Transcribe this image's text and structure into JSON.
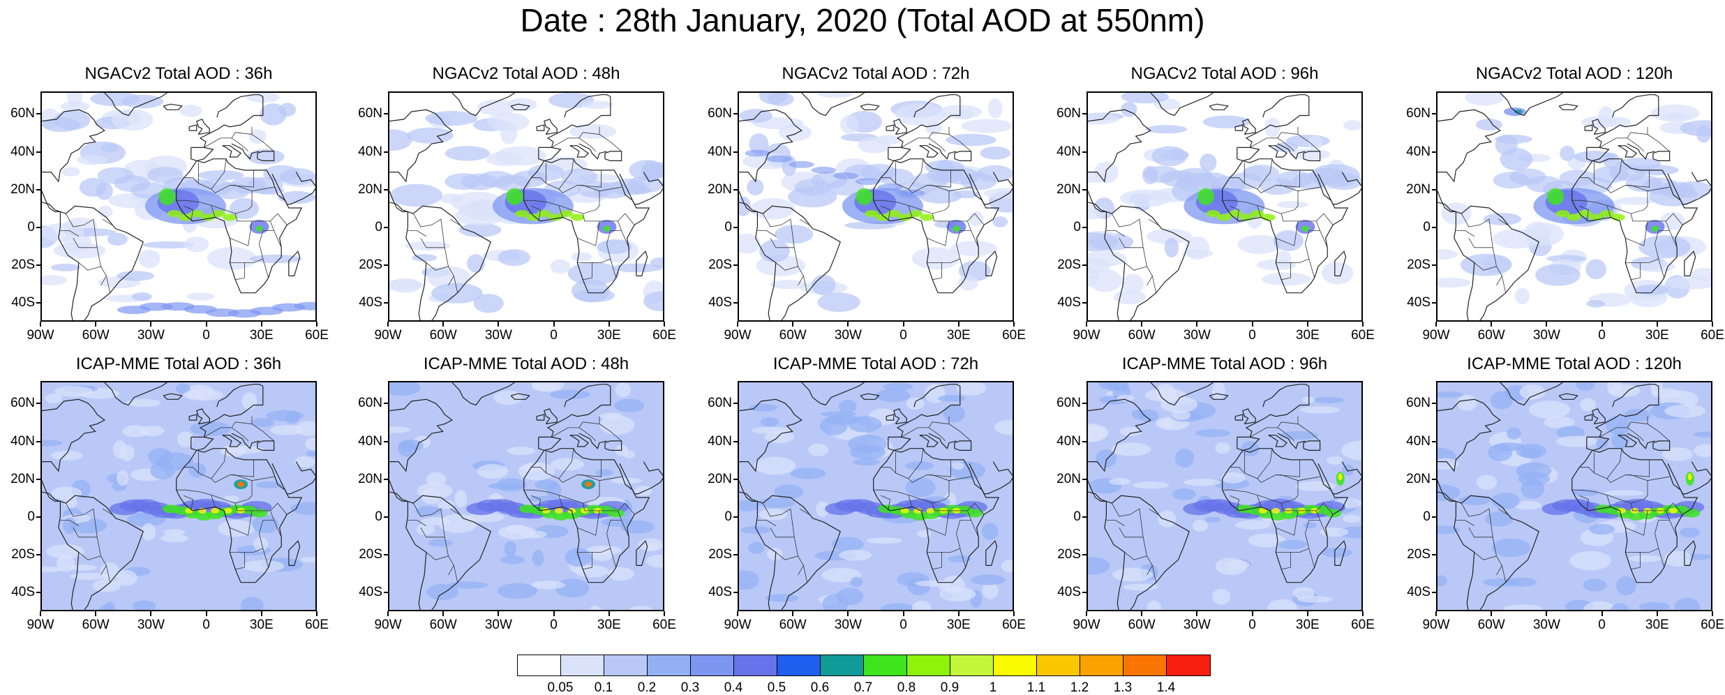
{
  "figure": {
    "title": "Date : 28th January, 2020 (Total AOD at 550nm)"
  },
  "axes": {
    "lat_labels": [
      "60N",
      "40N",
      "20N",
      "0",
      "20S",
      "40S"
    ],
    "lat_values": [
      60,
      40,
      20,
      0,
      -20,
      -40
    ],
    "lon_labels": [
      "90W",
      "60W",
      "30W",
      "0",
      "30E",
      "60E"
    ],
    "lon_values": [
      -90,
      -60,
      -30,
      0,
      30,
      60
    ],
    "lat_range": [
      -50,
      72
    ],
    "lon_range": [
      -90,
      60
    ]
  },
  "rows": [
    {
      "model": "NGACv2",
      "panels": [
        {
          "title": "NGACv2 Total AOD : 36h"
        },
        {
          "title": "NGACv2 Total AOD : 48h"
        },
        {
          "title": "NGACv2 Total AOD : 72h"
        },
        {
          "title": "NGACv2 Total AOD : 96h"
        },
        {
          "title": "NGACv2 Total AOD : 120h"
        }
      ]
    },
    {
      "model": "ICAP-MME",
      "panels": [
        {
          "title": "ICAP-MME Total AOD : 36h"
        },
        {
          "title": "ICAP-MME Total AOD : 48h"
        },
        {
          "title": "ICAP-MME Total AOD : 72h"
        },
        {
          "title": "ICAP-MME Total AOD : 96h"
        },
        {
          "title": "ICAP-MME Total AOD : 120h"
        }
      ]
    }
  ],
  "colorbar": {
    "labels": [
      "0.05",
      "0.1",
      "0.2",
      "0.3",
      "0.4",
      "0.5",
      "0.6",
      "0.7",
      "0.8",
      "0.9",
      "1",
      "1.1",
      "1.2",
      "1.3",
      "1.4"
    ],
    "colors": [
      "#ffffff",
      "#dbe3fb",
      "#b9c8f7",
      "#93b0f5",
      "#7d97f1",
      "#6673ea",
      "#1f5ff0",
      "#109a98",
      "#3ee41e",
      "#8ef20a",
      "#c2f73a",
      "#fbfb00",
      "#fbc700",
      "#f9a200",
      "#f97500",
      "#f91e12"
    ]
  }
}
